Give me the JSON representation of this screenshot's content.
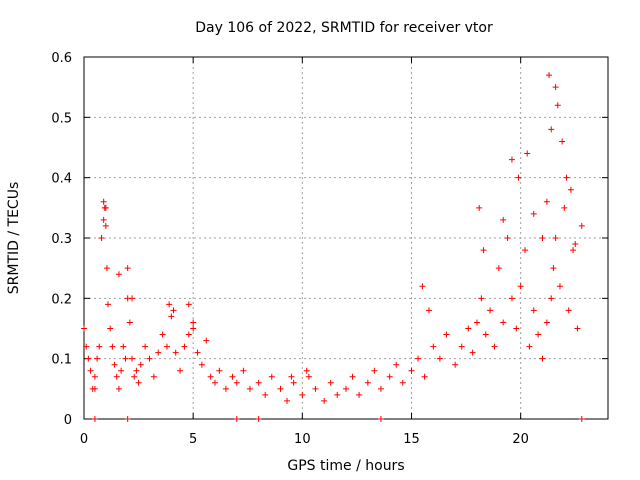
{
  "chart_data": {
    "type": "scatter",
    "title": "Day 106 of 2022, SRMTID for receiver vtor",
    "xlabel": "GPS time / hours",
    "ylabel": "SRMTID / TECUs",
    "xlim": [
      0,
      24
    ],
    "ylim": [
      0,
      0.6
    ],
    "xticks": [
      0,
      5,
      10,
      15,
      20
    ],
    "xtick_labels": [
      "0",
      "5",
      "10",
      "15",
      "20"
    ],
    "yticks": [
      0,
      0.1,
      0.2,
      0.3,
      0.4,
      0.5,
      0.6
    ],
    "ytick_labels": [
      "0",
      "0.1",
      "0.2",
      "0.3",
      "0.4",
      "0.5",
      "0.6"
    ],
    "grid": true,
    "marker": "+",
    "marker_color": "#ff0000",
    "series": [
      {
        "name": "SRMTID",
        "x": [
          0.0,
          0.1,
          0.2,
          0.3,
          0.4,
          0.5,
          0.6,
          0.7,
          0.8,
          0.9,
          0.95,
          1.0,
          1.05,
          1.1,
          1.2,
          1.3,
          1.4,
          1.5,
          1.6,
          1.7,
          1.8,
          1.9,
          2.0,
          2.1,
          2.2,
          2.3,
          2.4,
          2.5,
          2.6,
          2.8,
          3.0,
          3.2,
          3.4,
          3.6,
          3.8,
          4.0,
          4.2,
          4.4,
          4.6,
          4.8,
          5.0,
          5.2,
          5.4,
          5.6,
          5.8,
          6.0,
          6.2,
          6.5,
          6.8,
          7.0,
          7.3,
          7.6,
          8.0,
          8.3,
          8.6,
          9.0,
          9.3,
          9.6,
          10.0,
          10.3,
          10.6,
          11.0,
          11.3,
          11.6,
          12.0,
          12.3,
          12.6,
          13.0,
          13.3,
          13.6,
          14.0,
          14.3,
          14.6,
          15.0,
          15.3,
          15.6,
          16.0,
          16.3,
          16.6,
          17.0,
          17.3,
          17.6,
          17.8,
          18.0,
          18.2,
          18.4,
          18.6,
          18.8,
          19.0,
          19.2,
          19.4,
          19.6,
          19.8,
          20.0,
          20.2,
          20.4,
          20.6,
          20.8,
          21.0,
          21.2,
          21.4,
          21.5,
          21.6,
          21.8,
          22.0,
          22.2,
          22.4,
          22.6,
          22.8,
          0.5,
          0.9,
          1.0,
          1.6,
          2.0,
          2.2,
          3.9,
          4.1,
          4.8,
          5.0,
          9.5,
          10.2,
          15.5,
          15.8,
          18.1,
          18.3,
          19.2,
          19.6,
          19.9,
          20.3,
          20.6,
          21.0,
          21.2,
          21.3,
          21.4,
          21.6,
          21.7,
          21.9,
          22.1,
          22.3,
          22.5,
          0.5,
          2.0,
          7.0,
          8.0,
          13.6,
          22.8
        ],
        "y": [
          0.15,
          0.12,
          0.1,
          0.08,
          0.05,
          0.07,
          0.1,
          0.12,
          0.3,
          0.33,
          0.35,
          0.32,
          0.25,
          0.19,
          0.15,
          0.12,
          0.09,
          0.07,
          0.05,
          0.08,
          0.12,
          0.1,
          0.2,
          0.16,
          0.1,
          0.07,
          0.08,
          0.06,
          0.09,
          0.12,
          0.1,
          0.07,
          0.11,
          0.14,
          0.12,
          0.17,
          0.11,
          0.08,
          0.12,
          0.14,
          0.16,
          0.11,
          0.09,
          0.13,
          0.07,
          0.06,
          0.08,
          0.05,
          0.07,
          0.06,
          0.08,
          0.05,
          0.06,
          0.04,
          0.07,
          0.05,
          0.03,
          0.06,
          0.04,
          0.07,
          0.05,
          0.03,
          0.06,
          0.04,
          0.05,
          0.07,
          0.04,
          0.06,
          0.08,
          0.05,
          0.07,
          0.09,
          0.06,
          0.08,
          0.1,
          0.07,
          0.12,
          0.1,
          0.14,
          0.09,
          0.12,
          0.15,
          0.11,
          0.16,
          0.2,
          0.14,
          0.18,
          0.12,
          0.25,
          0.16,
          0.3,
          0.2,
          0.15,
          0.22,
          0.28,
          0.12,
          0.18,
          0.14,
          0.1,
          0.16,
          0.2,
          0.25,
          0.3,
          0.22,
          0.35,
          0.18,
          0.28,
          0.15,
          0.32,
          0.05,
          0.36,
          0.35,
          0.24,
          0.25,
          0.2,
          0.19,
          0.18,
          0.19,
          0.15,
          0.07,
          0.08,
          0.22,
          0.18,
          0.35,
          0.28,
          0.33,
          0.43,
          0.4,
          0.44,
          0.34,
          0.3,
          0.36,
          0.57,
          0.48,
          0.55,
          0.52,
          0.46,
          0.4,
          0.38,
          0.29,
          0.0,
          0.0,
          0.0,
          0.0,
          0.0,
          0.0
        ]
      }
    ]
  }
}
